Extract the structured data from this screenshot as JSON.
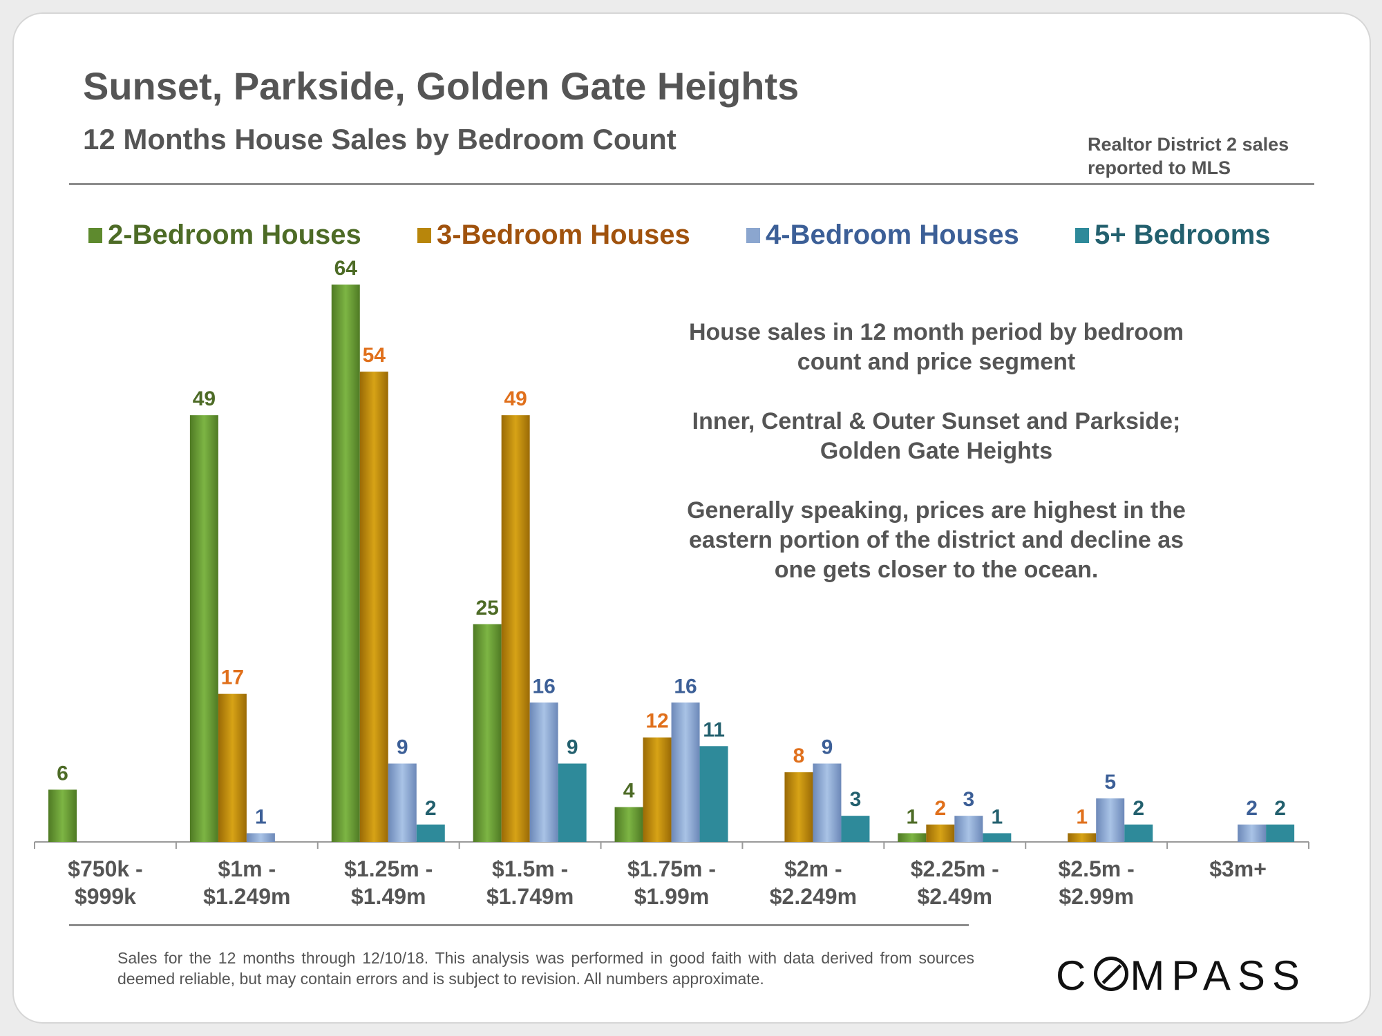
{
  "header": {
    "title": "Sunset, Parkside, Golden Gate Heights",
    "subtitle": "12 Months House Sales by Bedroom Count",
    "source_line1": "Realtor District 2 sales",
    "source_line2": "reported to MLS"
  },
  "legend": [
    {
      "label": "2-Bedroom Houses",
      "color": "#5e8a2e",
      "text_color": "#4d6b26"
    },
    {
      "label": "3-Bedroom Houses",
      "color": "#b8860b",
      "text_color": "#a0520d"
    },
    {
      "label": "4-Bedroom Houses",
      "color": "#8ba6cf",
      "text_color": "#3c5f97"
    },
    {
      "label": "5+ Bedrooms",
      "color": "#2e8a9a",
      "text_color": "#23606e"
    }
  ],
  "annotation": {
    "para1": "House sales in 12 month period by bedroom count and price segment",
    "para2": "Inner, Central & Outer Sunset and Parkside; Golden Gate Heights",
    "para3": "Generally speaking, prices are highest in the eastern portion of the district and decline as one gets closer to the ocean."
  },
  "footnote": "Sales for the 12 months through 12/10/18. This analysis was performed in good faith with data derived from sources deemed reliable, but may contain errors and is subject to revision. All numbers approximate.",
  "logo": {
    "before_o": "C",
    "after_o": "MPASS",
    "full": "COMPASS"
  },
  "chart_data": {
    "type": "bar",
    "title": "12 Months House Sales by Bedroom Count",
    "xlabel": "",
    "ylabel": "",
    "ylim": [
      0,
      66
    ],
    "grid": false,
    "legend_position": "top",
    "categories": [
      [
        "$750k -",
        "$999k"
      ],
      [
        "$1m -",
        "$1.249m"
      ],
      [
        "$1.25m -",
        "$1.49m"
      ],
      [
        "$1.5m -",
        "$1.749m"
      ],
      [
        "$1.75m -",
        "$1.99m"
      ],
      [
        "$2m -",
        "$2.249m"
      ],
      [
        "$2.25m -",
        "$2.49m"
      ],
      [
        "$2.5m -",
        "$2.99m"
      ],
      [
        "$3m+"
      ]
    ],
    "series": [
      {
        "name": "2-Bedroom Houses",
        "color_light": "#7db544",
        "color_dark": "#4f7a24",
        "label_color": "#4d6b26",
        "values": [
          6,
          49,
          64,
          25,
          4,
          null,
          1,
          null,
          null
        ]
      },
      {
        "name": "3-Bedroom Houses",
        "color_light": "#d7a316",
        "color_dark": "#9a6a06",
        "label_color": "#e0701c",
        "values": [
          null,
          17,
          54,
          49,
          12,
          8,
          2,
          1,
          null
        ]
      },
      {
        "name": "4-Bedroom Houses",
        "color_light": "#a9c3e6",
        "color_dark": "#6c88b8",
        "label_color": "#3c5f97",
        "values": [
          null,
          1,
          9,
          16,
          16,
          9,
          3,
          5,
          2
        ]
      },
      {
        "name": "5+ Bedrooms",
        "color_light": "#2e8a9a",
        "color_dark": "#2e8a9a",
        "label_color": "#23606e",
        "values": [
          null,
          null,
          2,
          9,
          11,
          3,
          1,
          2,
          2
        ]
      }
    ]
  }
}
